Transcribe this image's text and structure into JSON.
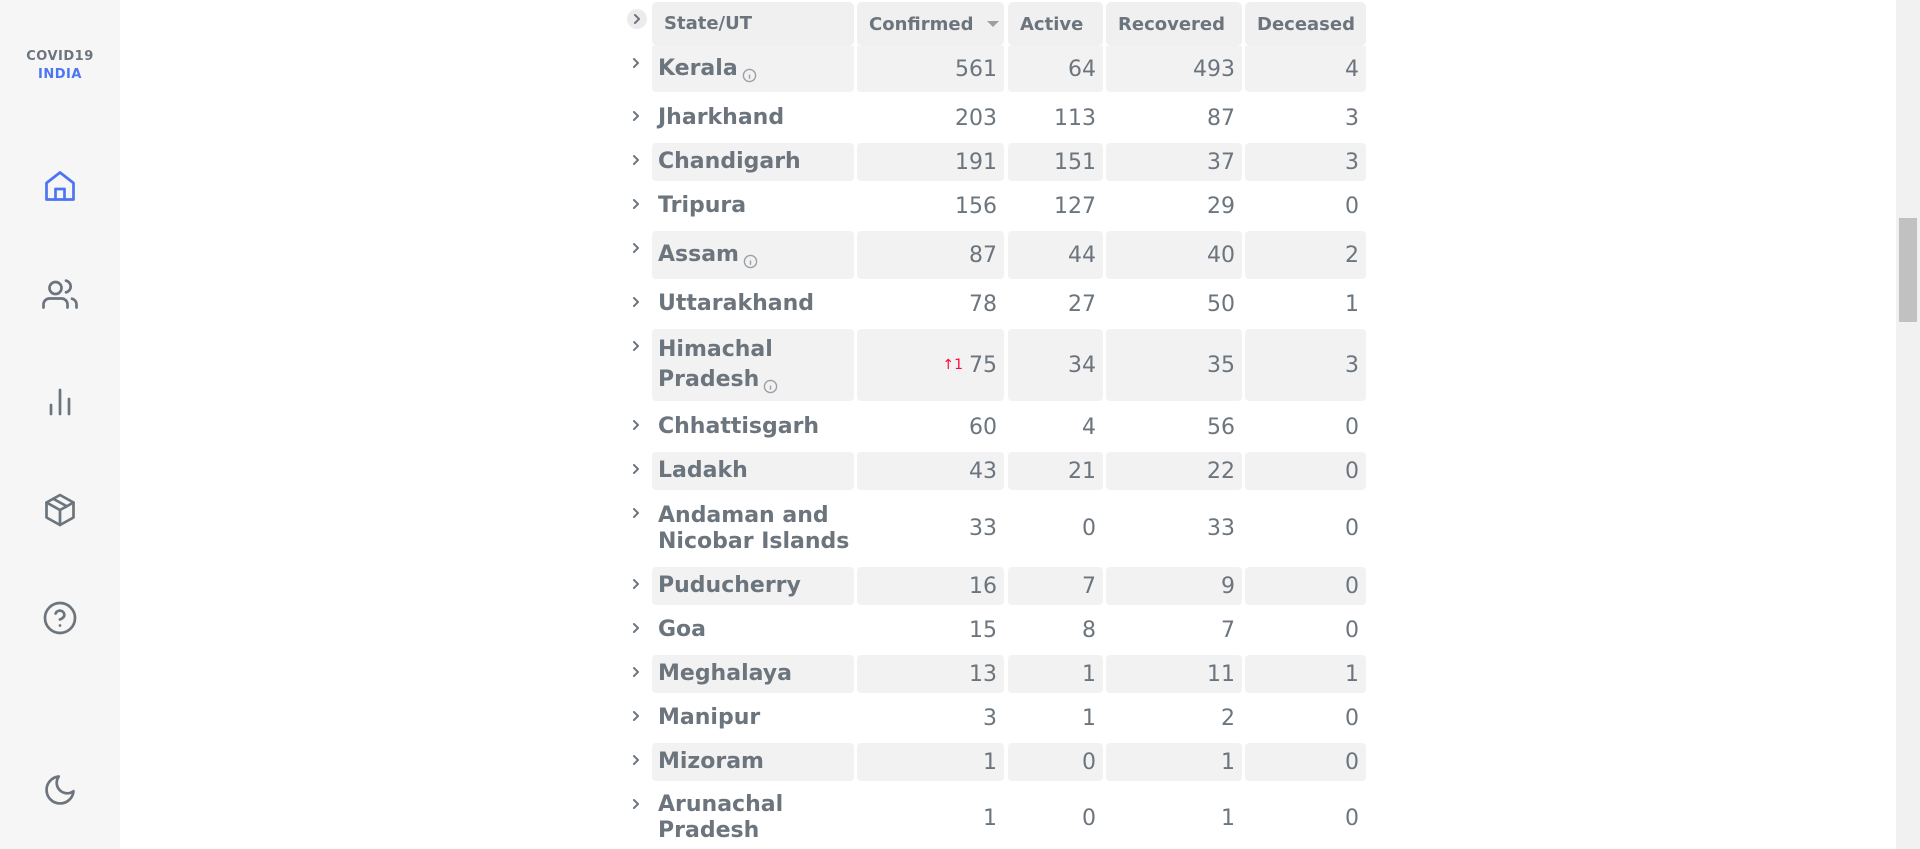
{
  "app": {
    "logo_line1": "COVID19",
    "logo_line2": "INDIA",
    "accent_color": "#4c75f2",
    "delta_color": "#ff073a"
  },
  "nav": [
    {
      "name": "home-icon",
      "active": true
    },
    {
      "name": "users-icon",
      "active": false
    },
    {
      "name": "bar-chart-icon",
      "active": false
    },
    {
      "name": "package-icon",
      "active": false
    },
    {
      "name": "help-icon",
      "active": false
    },
    {
      "name": "moon-icon",
      "active": false
    }
  ],
  "table": {
    "headers": {
      "state": "State/UT",
      "confirmed": "Confirmed",
      "active": "Active",
      "recovered": "Recovered",
      "deceased": "Deceased"
    },
    "sorted_by": "Confirmed",
    "rows": [
      {
        "state": "Kerala",
        "info": true,
        "confirmed": "561",
        "active": "64",
        "recovered": "493",
        "deceased": "4"
      },
      {
        "state": "Jharkhand",
        "info": false,
        "confirmed": "203",
        "active": "113",
        "recovered": "87",
        "deceased": "3"
      },
      {
        "state": "Chandigarh",
        "info": false,
        "confirmed": "191",
        "active": "151",
        "recovered": "37",
        "deceased": "3"
      },
      {
        "state": "Tripura",
        "info": false,
        "confirmed": "156",
        "active": "127",
        "recovered": "29",
        "deceased": "0"
      },
      {
        "state": "Assam",
        "info": true,
        "confirmed": "87",
        "active": "44",
        "recovered": "40",
        "deceased": "2"
      },
      {
        "state": "Uttarakhand",
        "info": false,
        "confirmed": "78",
        "active": "27",
        "recovered": "50",
        "deceased": "1"
      },
      {
        "state_line1": "Himachal",
        "state_line2": "Pradesh",
        "info": true,
        "confirmed_delta": "↑1",
        "confirmed": "75",
        "active": "34",
        "recovered": "35",
        "deceased": "3"
      },
      {
        "state": "Chhattisgarh",
        "info": false,
        "confirmed": "60",
        "active": "4",
        "recovered": "56",
        "deceased": "0"
      },
      {
        "state": "Ladakh",
        "info": false,
        "confirmed": "43",
        "active": "21",
        "recovered": "22",
        "deceased": "0"
      },
      {
        "state_line1": "Andaman and",
        "state_line2": "Nicobar Islands",
        "info": false,
        "confirmed": "33",
        "active": "0",
        "recovered": "33",
        "deceased": "0"
      },
      {
        "state": "Puducherry",
        "info": false,
        "confirmed": "16",
        "active": "7",
        "recovered": "9",
        "deceased": "0"
      },
      {
        "state": "Goa",
        "info": false,
        "confirmed": "15",
        "active": "8",
        "recovered": "7",
        "deceased": "0"
      },
      {
        "state": "Meghalaya",
        "info": false,
        "confirmed": "13",
        "active": "1",
        "recovered": "11",
        "deceased": "1"
      },
      {
        "state": "Manipur",
        "info": false,
        "confirmed": "3",
        "active": "1",
        "recovered": "2",
        "deceased": "0"
      },
      {
        "state": "Mizoram",
        "info": false,
        "confirmed": "1",
        "active": "0",
        "recovered": "1",
        "deceased": "0"
      },
      {
        "state_line1": "Arunachal",
        "state_line2": "Pradesh",
        "info": false,
        "confirmed": "1",
        "active": "0",
        "recovered": "1",
        "deceased": "0"
      }
    ]
  }
}
